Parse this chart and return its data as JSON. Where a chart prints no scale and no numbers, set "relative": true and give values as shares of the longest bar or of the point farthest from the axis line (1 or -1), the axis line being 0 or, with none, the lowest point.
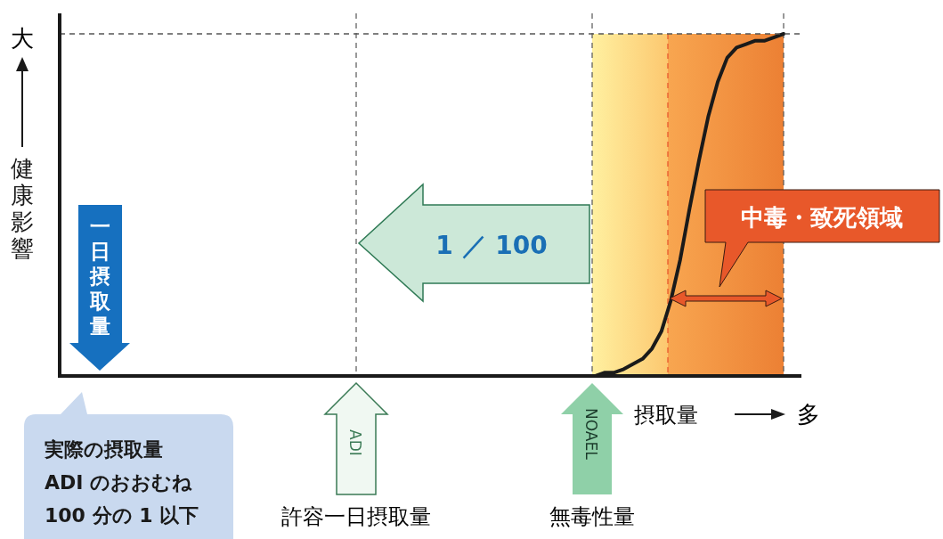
{
  "chart_data": {
    "type": "line",
    "relative": true,
    "xlabel": "摂取量",
    "ylabel": "健康影響",
    "categories": [
      null,
      null,
      null,
      null,
      null,
      null,
      null,
      null,
      null,
      null,
      null,
      null,
      null,
      null,
      null,
      null,
      null,
      null,
      null,
      null,
      null,
      null,
      null,
      null,
      null,
      null,
      null,
      null,
      null,
      null,
      null,
      null,
      null,
      null,
      null,
      null,
      null,
      null,
      null,
      null,
      null,
      null,
      null,
      null,
      null,
      null,
      null,
      null,
      null,
      null,
      null,
      null,
      null,
      null,
      null,
      null,
      null,
      null,
      null,
      null,
      null,
      null,
      null,
      null,
      null,
      null,
      null,
      null,
      null,
      null,
      null,
      null,
      null,
      null,
      null,
      null,
      null,
      null
    ],
    "series": [
      {
        "color": "#1a1a1a",
        "line_style": "solid",
        "values": [
          0,
          0,
          0,
          0,
          0,
          0,
          0,
          0,
          0,
          0,
          0,
          0,
          0,
          0,
          0,
          0,
          0,
          0,
          0,
          0,
          0,
          0,
          0,
          0,
          0,
          0,
          0,
          0,
          0,
          0,
          0,
          0,
          0,
          0,
          0,
          0,
          0,
          0,
          0,
          0,
          0,
          0,
          0,
          0,
          0,
          0,
          0,
          0,
          0,
          0,
          0,
          0,
          0,
          0,
          0,
          0,
          0,
          0,
          0.01,
          0.01,
          0.02,
          0.035,
          0.05,
          0.08,
          0.13,
          0.22,
          0.34,
          0.49,
          0.63,
          0.76,
          0.86,
          0.93,
          0.96,
          0.97,
          0.98,
          0.98,
          0.99,
          1
        ]
      }
    ],
    "ref_lines": [
      {
        "axis": "y",
        "value": 1,
        "color": "#555555",
        "line_style": "dashed"
      }
    ],
    "annotations": [
      "大",
      "多",
      "一日摂取量",
      "実際の摂取量\nADI のおおむね\n100 分の 1 以下",
      "1 ／ 100",
      "中毒・致死領域",
      "許容一日摂取量",
      "無毒性量",
      "ADI",
      "NOAEL"
    ]
  }
}
